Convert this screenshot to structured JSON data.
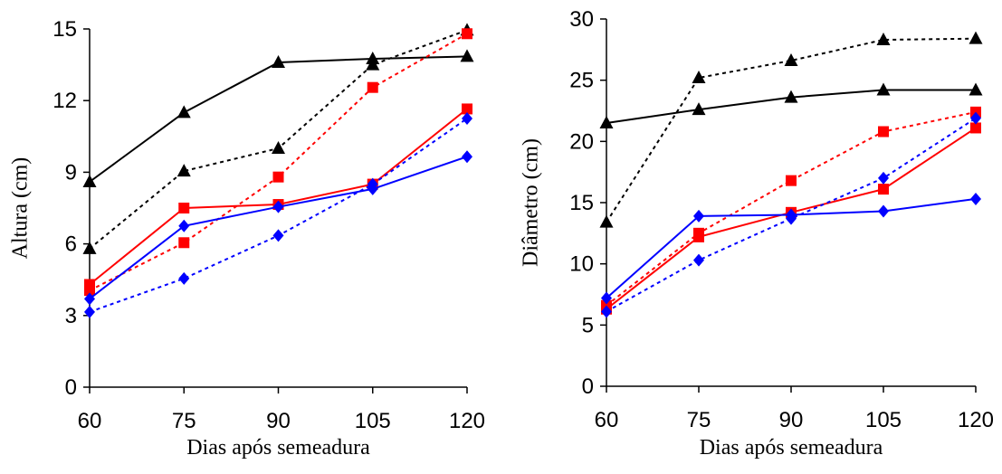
{
  "chart_data": [
    {
      "type": "line",
      "title": "",
      "xlabel": "Dias após semeadura",
      "ylabel": "Altura (cm)",
      "x": [
        60,
        75,
        90,
        105,
        120
      ],
      "xticks": [
        "60",
        "75",
        "90",
        "105",
        "120"
      ],
      "ylim": [
        0,
        15
      ],
      "yticks": [
        "0",
        "3",
        "6",
        "9",
        "12",
        "15"
      ],
      "ytick_values": [
        0,
        3,
        6,
        9,
        12,
        15
      ],
      "grid": false,
      "legend": "none",
      "series": [
        {
          "color": "#000000",
          "marker": "triangle",
          "dash": "solid",
          "values": [
            8.6,
            11.5,
            13.6,
            13.75,
            13.85
          ]
        },
        {
          "color": "#000000",
          "marker": "triangle",
          "dash": "dotted",
          "values": [
            5.8,
            9.05,
            10.0,
            13.5,
            14.95
          ]
        },
        {
          "color": "#ff0000",
          "marker": "square",
          "dash": "solid",
          "values": [
            4.3,
            7.5,
            7.65,
            8.5,
            11.65
          ]
        },
        {
          "color": "#ff0000",
          "marker": "square",
          "dash": "dotted",
          "values": [
            4.05,
            6.05,
            8.8,
            12.55,
            14.8
          ]
        },
        {
          "color": "#0000ff",
          "marker": "diamond",
          "dash": "solid",
          "values": [
            3.7,
            6.75,
            7.55,
            8.3,
            9.65
          ]
        },
        {
          "color": "#0000ff",
          "marker": "diamond",
          "dash": "dotted",
          "values": [
            3.15,
            4.55,
            6.35,
            8.5,
            11.25
          ]
        }
      ]
    },
    {
      "type": "line",
      "title": "",
      "xlabel": "Dias após semeadura",
      "ylabel": "Diâmetro (cm)",
      "x": [
        60,
        75,
        90,
        105,
        120
      ],
      "xticks": [
        "60",
        "75",
        "90",
        "105",
        "120"
      ],
      "ylim": [
        0,
        30
      ],
      "yticks": [
        "0",
        "5",
        "10",
        "15",
        "20",
        "25",
        "30"
      ],
      "ytick_values": [
        0,
        5,
        10,
        15,
        20,
        25,
        30
      ],
      "grid": false,
      "legend": "none",
      "series": [
        {
          "color": "#000000",
          "marker": "triangle",
          "dash": "solid",
          "values": [
            21.5,
            22.6,
            23.6,
            24.2,
            24.2
          ]
        },
        {
          "color": "#000000",
          "marker": "triangle",
          "dash": "dotted",
          "values": [
            13.4,
            25.2,
            26.6,
            28.3,
            28.4
          ]
        },
        {
          "color": "#ff0000",
          "marker": "square",
          "dash": "solid",
          "values": [
            6.3,
            12.2,
            14.2,
            16.1,
            21.1
          ]
        },
        {
          "color": "#ff0000",
          "marker": "square",
          "dash": "dotted",
          "values": [
            6.6,
            12.5,
            16.8,
            20.8,
            22.4
          ]
        },
        {
          "color": "#0000ff",
          "marker": "diamond",
          "dash": "solid",
          "values": [
            7.2,
            13.9,
            14.0,
            14.3,
            15.3
          ]
        },
        {
          "color": "#0000ff",
          "marker": "diamond",
          "dash": "dotted",
          "values": [
            6.1,
            10.3,
            13.7,
            17.0,
            21.9
          ]
        }
      ]
    }
  ]
}
